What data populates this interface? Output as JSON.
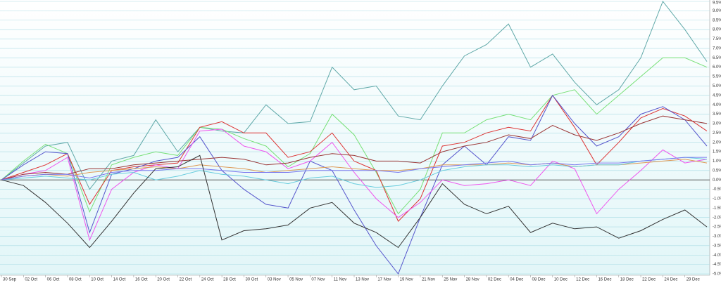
{
  "chart_data": {
    "type": "line",
    "categories": [
      "30 Sep",
      "02 Oct",
      "06 Oct",
      "08 Oct",
      "10 Oct",
      "14 Oct",
      "16 Oct",
      "20 Oct",
      "22 Oct",
      "24 Oct",
      "28 Oct",
      "30 Oct",
      "03 Nov",
      "05 Nov",
      "07 Nov",
      "11 Nov",
      "13 Nov",
      "17 Nov",
      "19 Nov",
      "21 Nov",
      "25 Nov",
      "28 Nov",
      "02 Dec",
      "04 Dec",
      "08 Dec",
      "10 Dec",
      "12 Dec",
      "16 Dec",
      "18 Dec",
      "22 Dec",
      "24 Dec",
      "29 Dec",
      null
    ],
    "ylim": [
      -5.0,
      9.5
    ],
    "yticks": [
      {
        "value": -5.0,
        "label": "-5.0%"
      },
      {
        "value": -4.5,
        "label": "-4.5%"
      },
      {
        "value": -4.0,
        "label": "-4.0%"
      },
      {
        "value": -3.5,
        "label": "-3.5%"
      },
      {
        "value": -3.0,
        "label": "-3.0%"
      },
      {
        "value": -2.5,
        "label": "-2.5%"
      },
      {
        "value": -2.0,
        "label": "-2.0%"
      },
      {
        "value": -1.5,
        "label": "-1.5%"
      },
      {
        "value": -1.0,
        "label": "-1.0%"
      },
      {
        "value": -0.5,
        "label": "-0.5%"
      },
      {
        "value": 0.0,
        "label": "0.0%"
      },
      {
        "value": 0.5,
        "label": "0.5%"
      },
      {
        "value": 1.0,
        "label": "1.0%"
      },
      {
        "value": 1.5,
        "label": "1.5%"
      },
      {
        "value": 2.0,
        "label": "2.0%"
      },
      {
        "value": 2.5,
        "label": "2.5%"
      },
      {
        "value": 3.0,
        "label": "3.0%"
      },
      {
        "value": 3.5,
        "label": "3.5%"
      },
      {
        "value": 4.0,
        "label": "4.0%"
      },
      {
        "value": 4.5,
        "label": "4.5%"
      },
      {
        "value": 5.0,
        "label": "5.0%"
      },
      {
        "value": 5.5,
        "label": "5.5%"
      },
      {
        "value": 6.0,
        "label": "6.0%"
      },
      {
        "value": 6.5,
        "label": "6.5%"
      },
      {
        "value": 7.0,
        "label": "7.0%"
      },
      {
        "value": 7.5,
        "label": "7.5%"
      },
      {
        "value": 8.0,
        "label": "8.0%"
      },
      {
        "value": 8.5,
        "label": "8.5%"
      },
      {
        "value": 9.0,
        "label": "9.0%"
      },
      {
        "value": 9.5,
        "label": "9.5%"
      }
    ],
    "grid": true,
    "series": [
      {
        "color": "#5fa8a8",
        "values": [
          0,
          0.9,
          1.8,
          2.0,
          -0.5,
          1.0,
          1.3,
          3.2,
          1.5,
          2.8,
          2.6,
          2.5,
          4.0,
          3.0,
          3.1,
          6.0,
          4.8,
          5.0,
          3.4,
          3.2,
          5.0,
          6.6,
          7.2,
          8.3,
          6.0,
          6.7,
          5.2,
          4.0,
          4.8,
          6.5,
          9.5,
          8.0,
          6.3
        ]
      },
      {
        "color": "#77e077",
        "values": [
          0,
          1.0,
          1.9,
          1.4,
          -1.7,
          0.8,
          1.2,
          1.5,
          1.3,
          2.8,
          2.7,
          2.2,
          1.8,
          0.7,
          1.4,
          3.5,
          2.4,
          0.4,
          -1.8,
          -0.5,
          2.5,
          2.5,
          3.2,
          3.5,
          3.2,
          4.5,
          4.8,
          3.5,
          4.5,
          5.5,
          6.5,
          6.5,
          6.0
        ]
      },
      {
        "color": "#dd3333",
        "values": [
          0,
          0.4,
          0.8,
          1.4,
          -1.3,
          0.5,
          0.7,
          0.8,
          0.9,
          2.8,
          3.1,
          2.5,
          2.5,
          1.2,
          1.5,
          2.5,
          1.0,
          0.5,
          -2.2,
          -1.0,
          1.8,
          2.0,
          2.5,
          2.8,
          2.6,
          4.5,
          2.8,
          0.8,
          2.0,
          3.3,
          3.8,
          3.4,
          2.6
        ]
      },
      {
        "color": "#5555cc",
        "values": [
          0,
          0.8,
          1.5,
          1.4,
          -2.8,
          0.3,
          0.6,
          1.0,
          1.2,
          2.3,
          0.5,
          -0.5,
          -1.3,
          -1.5,
          1.0,
          0.5,
          -1.6,
          -3.5,
          -5.0,
          -2.0,
          0.8,
          1.8,
          0.8,
          2.3,
          2.1,
          4.5,
          3.0,
          1.8,
          2.3,
          3.5,
          3.9,
          3.2,
          1.8
        ]
      },
      {
        "color": "#ee55ee",
        "values": [
          0,
          0.3,
          0.5,
          1.2,
          -3.2,
          -0.5,
          0.4,
          0.8,
          0.6,
          2.6,
          2.7,
          1.8,
          1.5,
          0.6,
          1.0,
          2.0,
          0.4,
          -1.0,
          -2.0,
          -1.2,
          0.0,
          -0.3,
          -0.2,
          0.0,
          -0.3,
          1.0,
          0.6,
          -1.8,
          -0.5,
          0.5,
          1.6,
          0.9,
          1.1
        ]
      },
      {
        "color": "#993333",
        "values": [
          0,
          0.3,
          0.4,
          0.3,
          0.6,
          0.6,
          0.8,
          0.9,
          1.0,
          1.1,
          1.2,
          1.1,
          0.8,
          0.9,
          1.2,
          1.4,
          1.3,
          1.0,
          1.0,
          0.9,
          1.5,
          1.8,
          2.0,
          2.4,
          2.2,
          2.9,
          2.4,
          2.1,
          2.5,
          3.0,
          3.4,
          3.2,
          3.0
        ]
      },
      {
        "color": "#dd9955",
        "values": [
          0,
          0.2,
          0.3,
          0.2,
          0.4,
          0.5,
          0.6,
          0.7,
          0.6,
          0.8,
          0.7,
          0.6,
          0.4,
          0.5,
          0.6,
          0.7,
          0.6,
          0.5,
          0.5,
          0.6,
          0.8,
          0.8,
          0.8,
          0.9,
          0.8,
          0.9,
          0.7,
          0.8,
          0.8,
          0.9,
          1.0,
          1.1,
          0.9
        ]
      },
      {
        "color": "#66ccdd",
        "values": [
          0,
          0.1,
          0.2,
          0.1,
          0.0,
          0.3,
          0.4,
          0.0,
          0.2,
          0.5,
          0.3,
          0.2,
          0.0,
          -0.2,
          0.1,
          0.2,
          -0.2,
          -0.4,
          -0.3,
          0.0,
          0.5,
          0.7,
          0.8,
          0.8,
          0.7,
          0.8,
          0.7,
          0.8,
          0.8,
          1.0,
          1.1,
          1.2,
          1.1
        ]
      },
      {
        "color": "#7777ee",
        "values": [
          0,
          0.2,
          0.3,
          0.3,
          0.1,
          0.4,
          0.5,
          0.5,
          0.6,
          0.6,
          0.5,
          0.4,
          0.4,
          0.4,
          0.5,
          0.5,
          0.5,
          0.5,
          0.4,
          0.6,
          0.7,
          0.8,
          0.9,
          1.0,
          0.8,
          0.9,
          0.8,
          0.9,
          0.9,
          1.0,
          1.1,
          1.2,
          1.2
        ]
      },
      {
        "color": "#333333",
        "values": [
          0,
          -0.3,
          -1.2,
          -2.3,
          -3.6,
          -2.2,
          -0.7,
          0.6,
          0.7,
          1.3,
          -3.2,
          -2.7,
          -2.6,
          -2.4,
          -1.5,
          -1.2,
          -2.3,
          -2.8,
          -3.6,
          -2.0,
          -0.2,
          -1.3,
          -1.8,
          -1.4,
          -2.8,
          -2.3,
          -2.6,
          -2.5,
          -3.1,
          -2.7,
          -2.1,
          -1.6,
          -2.5
        ]
      }
    ]
  }
}
